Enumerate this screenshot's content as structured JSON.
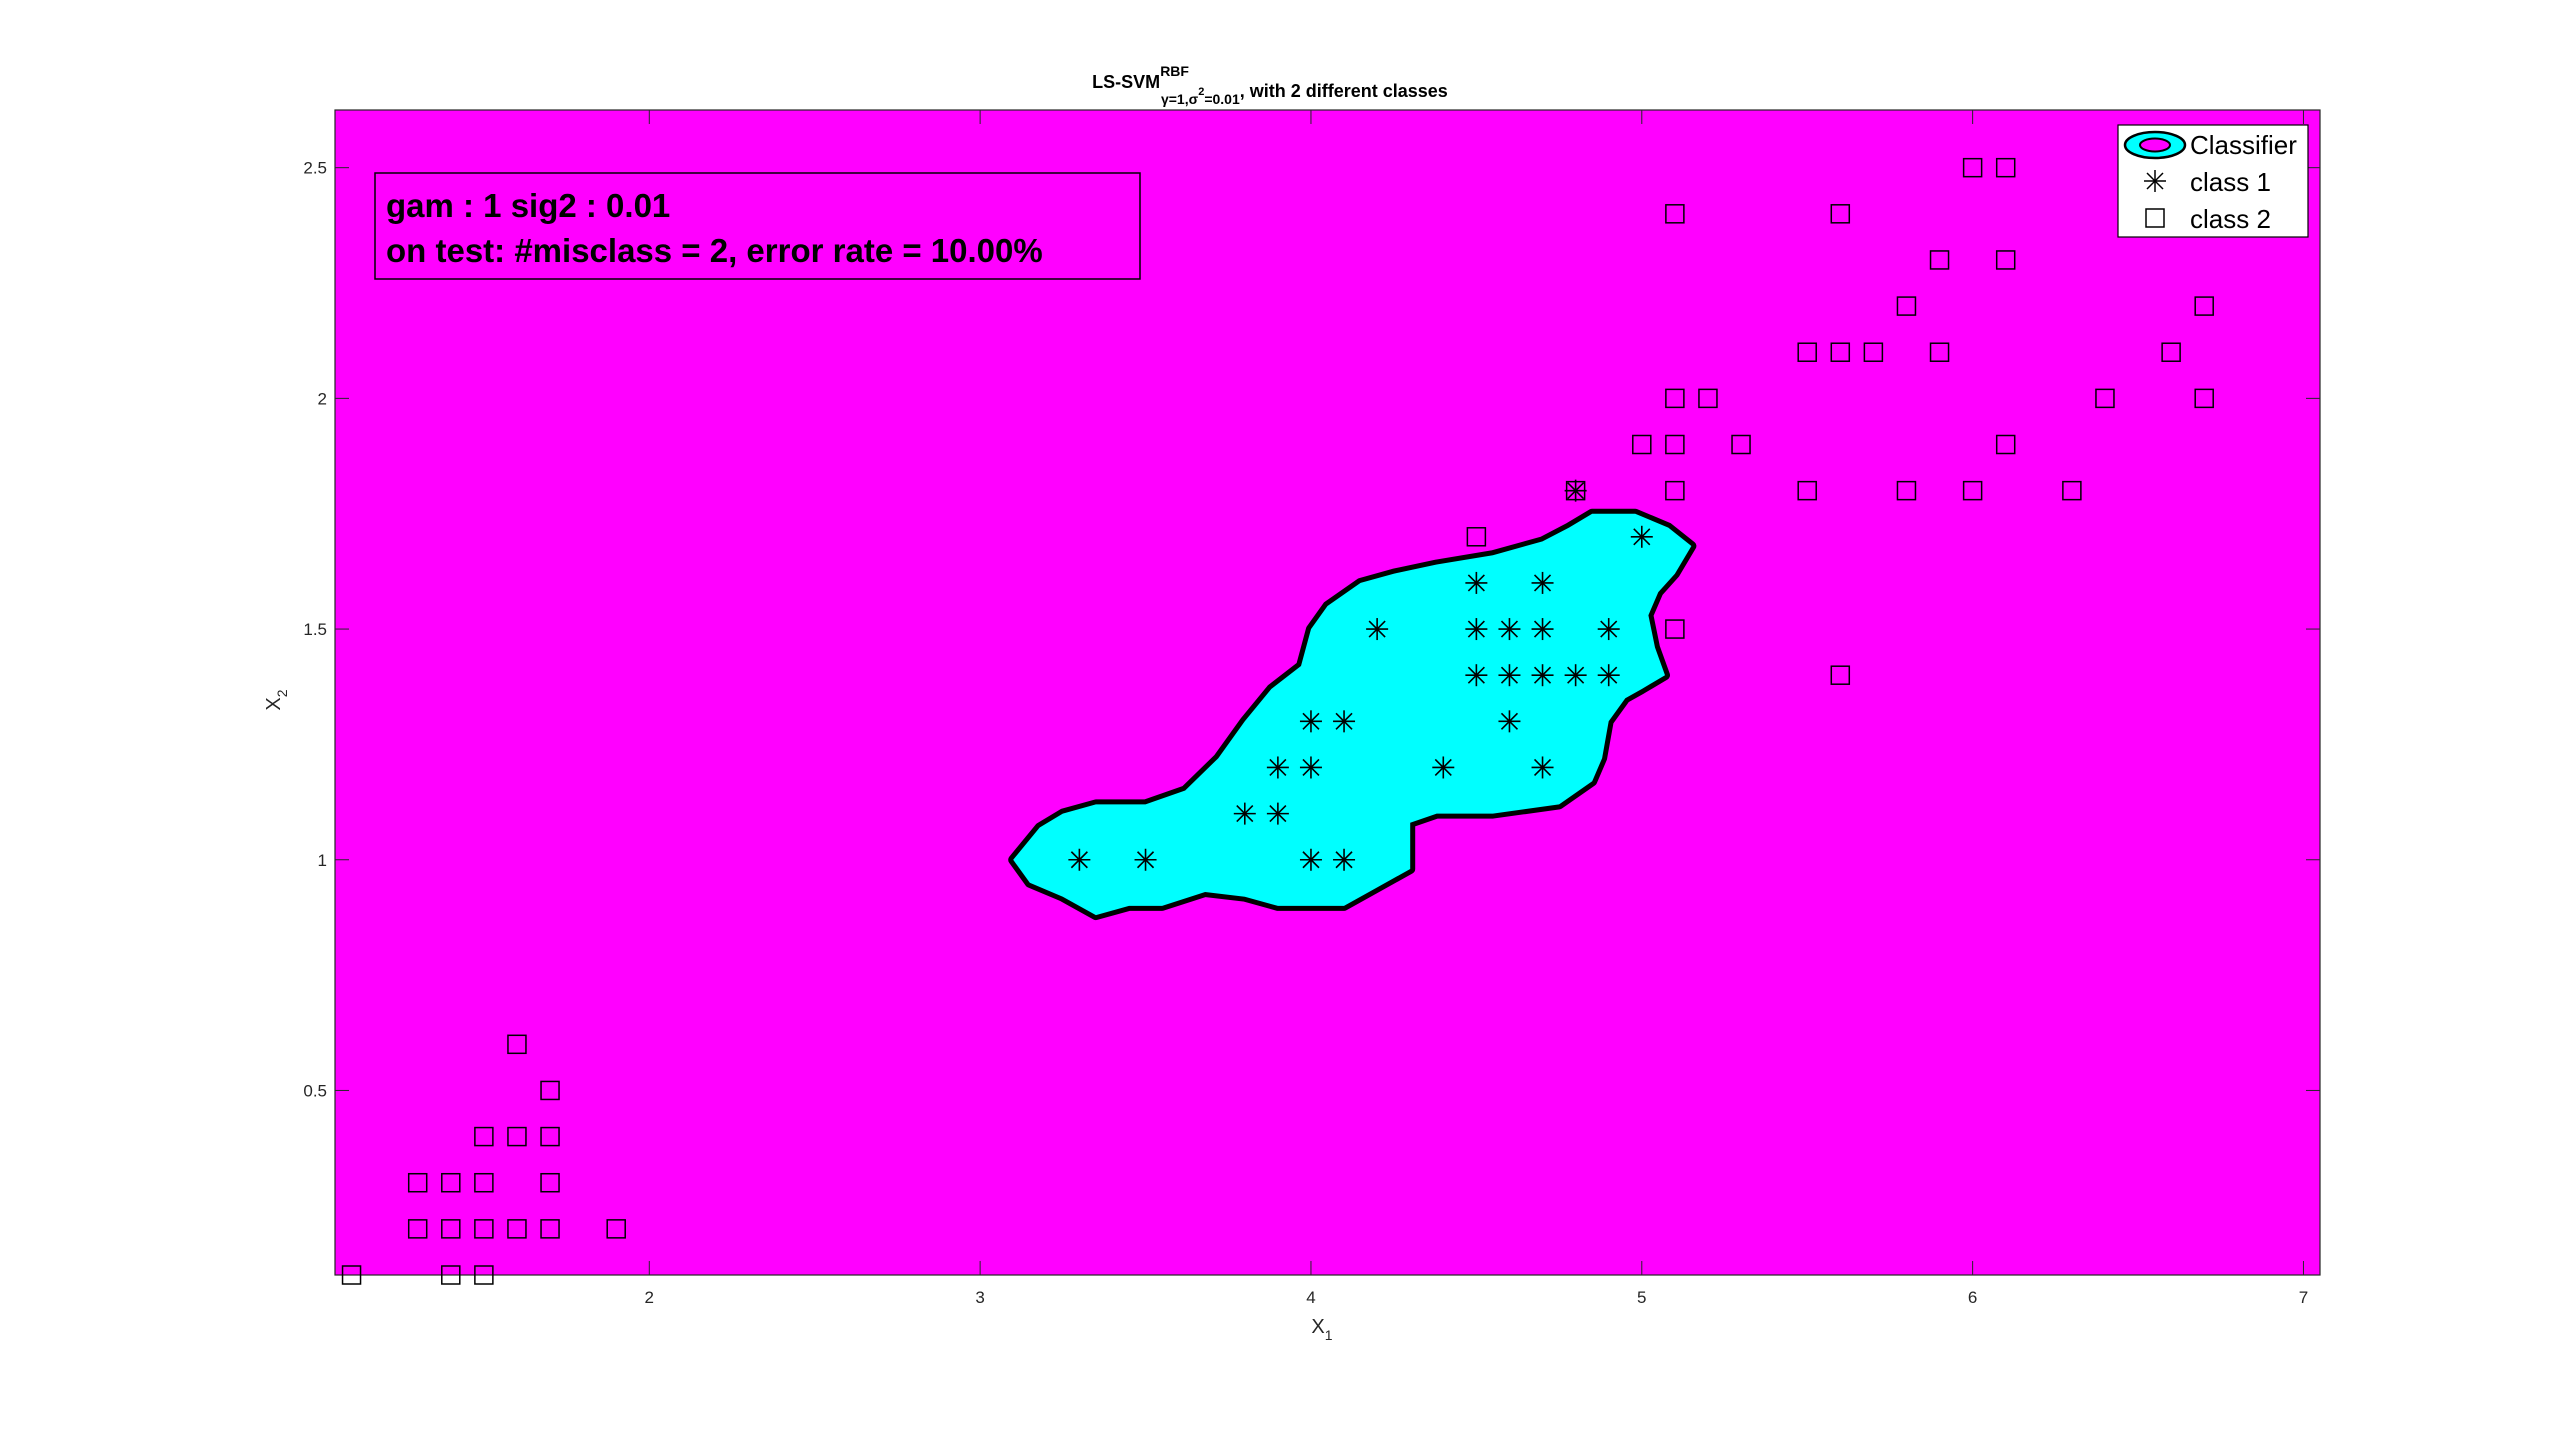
{
  "chart_data": {
    "type": "scatter",
    "title": {
      "prefix": "LS-SVM",
      "superscript": "RBF",
      "subscript": "γ=1,σ",
      "sub_sup": "2",
      "sub_end": "=0.01",
      "suffix": ", with 2 different classes"
    },
    "xlabel": {
      "main": "X",
      "sub": "1"
    },
    "ylabel": {
      "main": "X",
      "sub": "2"
    },
    "xlim": [
      1.05,
      7.05
    ],
    "ylim": [
      0.1,
      2.625
    ],
    "xticks": [
      2,
      3,
      4,
      5,
      6,
      7
    ],
    "yticks": [
      0.5,
      1,
      1.5,
      2,
      2.5
    ],
    "xtick_labels": [
      "2",
      "3",
      "4",
      "5",
      "6",
      "7"
    ],
    "ytick_labels": [
      "0.5",
      "1",
      "1.5",
      "2",
      "2.5"
    ],
    "background_color": "#ff00ff",
    "region_color": "#00ffff",
    "annotation": {
      "line1": "gam : 1   sig2 : 0.01",
      "line2": "on test: #misclass = 2, error rate = 10.00%"
    },
    "legend": {
      "placement": "top-right",
      "entries": [
        "Classifier",
        "class 1",
        "class 2"
      ]
    },
    "classifier_region": [
      [
        3.1,
        1.0
      ],
      [
        3.18,
        1.07
      ],
      [
        3.25,
        1.1
      ],
      [
        3.35,
        1.12
      ],
      [
        3.5,
        1.12
      ],
      [
        3.62,
        1.15
      ],
      [
        3.72,
        1.22
      ],
      [
        3.8,
        1.3
      ],
      [
        3.88,
        1.37
      ],
      [
        3.97,
        1.42
      ],
      [
        4.0,
        1.5
      ],
      [
        4.05,
        1.55
      ],
      [
        4.15,
        1.6
      ],
      [
        4.25,
        1.62
      ],
      [
        4.38,
        1.64
      ],
      [
        4.55,
        1.66
      ],
      [
        4.7,
        1.69
      ],
      [
        4.78,
        1.72
      ],
      [
        4.85,
        1.75
      ],
      [
        4.98,
        1.75
      ],
      [
        5.08,
        1.72
      ],
      [
        5.15,
        1.68
      ],
      [
        5.1,
        1.62
      ],
      [
        5.05,
        1.58
      ],
      [
        5.02,
        1.53
      ],
      [
        5.04,
        1.46
      ],
      [
        5.07,
        1.4
      ],
      [
        5.0,
        1.37
      ],
      [
        4.95,
        1.35
      ],
      [
        4.9,
        1.3
      ],
      [
        4.88,
        1.22
      ],
      [
        4.85,
        1.17
      ],
      [
        4.75,
        1.12
      ],
      [
        4.55,
        1.1
      ],
      [
        4.38,
        1.1
      ],
      [
        4.3,
        1.08
      ],
      [
        4.3,
        0.98
      ],
      [
        4.1,
        0.9
      ],
      [
        3.9,
        0.9
      ],
      [
        3.8,
        0.92
      ],
      [
        3.68,
        0.93
      ],
      [
        3.55,
        0.9
      ],
      [
        3.45,
        0.9
      ],
      [
        3.35,
        0.88
      ],
      [
        3.25,
        0.92
      ],
      [
        3.15,
        0.95
      ]
    ],
    "series": [
      {
        "name": "class 1",
        "marker": "asterisk",
        "points": [
          [
            3.3,
            1.0
          ],
          [
            3.5,
            1.0
          ],
          [
            4.0,
            1.0
          ],
          [
            4.1,
            1.0
          ],
          [
            3.8,
            1.1
          ],
          [
            3.9,
            1.1
          ],
          [
            3.9,
            1.2
          ],
          [
            4.0,
            1.2
          ],
          [
            4.4,
            1.2
          ],
          [
            4.7,
            1.2
          ],
          [
            4.0,
            1.3
          ],
          [
            4.1,
            1.3
          ],
          [
            4.6,
            1.3
          ],
          [
            4.5,
            1.4
          ],
          [
            4.6,
            1.4
          ],
          [
            4.7,
            1.4
          ],
          [
            4.8,
            1.4
          ],
          [
            4.9,
            1.4
          ],
          [
            4.2,
            1.5
          ],
          [
            4.5,
            1.5
          ],
          [
            4.6,
            1.5
          ],
          [
            4.7,
            1.5
          ],
          [
            4.9,
            1.5
          ],
          [
            4.5,
            1.6
          ],
          [
            4.7,
            1.6
          ],
          [
            5.0,
            1.7
          ],
          [
            4.8,
            1.8
          ]
        ]
      },
      {
        "name": "class 2",
        "marker": "square",
        "points": [
          [
            1.1,
            0.1
          ],
          [
            1.4,
            0.1
          ],
          [
            1.5,
            0.1
          ],
          [
            1.3,
            0.2
          ],
          [
            1.4,
            0.2
          ],
          [
            1.5,
            0.2
          ],
          [
            1.6,
            0.2
          ],
          [
            1.7,
            0.2
          ],
          [
            1.9,
            0.2
          ],
          [
            1.3,
            0.3
          ],
          [
            1.4,
            0.3
          ],
          [
            1.5,
            0.3
          ],
          [
            1.7,
            0.3
          ],
          [
            1.5,
            0.4
          ],
          [
            1.6,
            0.4
          ],
          [
            1.7,
            0.4
          ],
          [
            1.7,
            0.5
          ],
          [
            1.6,
            0.6
          ],
          [
            5.6,
            1.4
          ],
          [
            5.1,
            1.5
          ],
          [
            4.5,
            1.7
          ],
          [
            4.8,
            1.8
          ],
          [
            5.1,
            1.8
          ],
          [
            5.5,
            1.8
          ],
          [
            5.8,
            1.8
          ],
          [
            6.0,
            1.8
          ],
          [
            6.3,
            1.8
          ],
          [
            5.0,
            1.9
          ],
          [
            5.1,
            1.9
          ],
          [
            5.3,
            1.9
          ],
          [
            6.1,
            1.9
          ],
          [
            5.1,
            2.0
          ],
          [
            5.2,
            2.0
          ],
          [
            6.4,
            2.0
          ],
          [
            6.7,
            2.0
          ],
          [
            5.5,
            2.1
          ],
          [
            5.6,
            2.1
          ],
          [
            5.7,
            2.1
          ],
          [
            5.9,
            2.1
          ],
          [
            6.6,
            2.1
          ],
          [
            5.8,
            2.2
          ],
          [
            6.7,
            2.2
          ],
          [
            5.9,
            2.3
          ],
          [
            6.1,
            2.3
          ],
          [
            5.1,
            2.4
          ],
          [
            5.6,
            2.4
          ],
          [
            6.0,
            2.5
          ],
          [
            6.1,
            2.5
          ]
        ]
      }
    ]
  }
}
